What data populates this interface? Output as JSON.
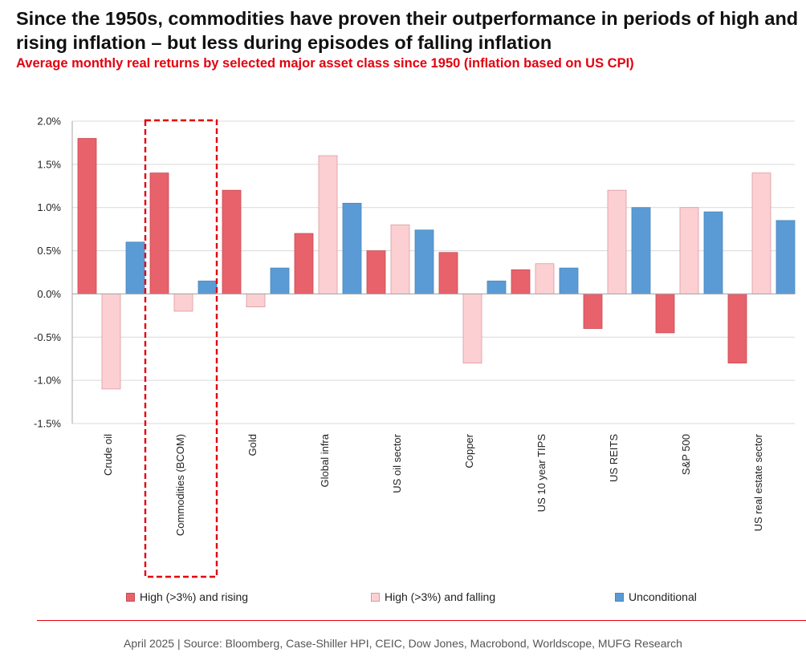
{
  "title": "Since the 1950s, commodities have proven their outperformance in periods of high and rising inflation – but less during episodes of falling inflation",
  "subtitle": "Average monthly real returns by selected major asset class since 1950 (inflation based on US CPI)",
  "footer": "April 2025 | Source: Bloomberg, Case-Shiller HPI, CEIC, Dow Jones, Macrobond, Worldscope, MUFG Research",
  "colors": {
    "accent": "#e3000f",
    "rising": "#e8626b",
    "falling": "#fcd0d2",
    "unconditional": "#5b9bd5"
  },
  "chart_data": {
    "type": "bar",
    "title": "Average monthly real returns by selected major asset class since 1950 (inflation based on US CPI)",
    "categories": [
      "Crude oil",
      "Commodities (BCOM)",
      "Gold",
      "Global infra",
      "US oil sector",
      "Copper",
      "US 10 year TIPS",
      "US REITS",
      "S&P 500",
      "US real estate sector"
    ],
    "series": [
      {
        "name": "High (>3%) and rising",
        "values": [
          1.8,
          1.4,
          1.2,
          0.7,
          0.5,
          0.48,
          0.28,
          -0.4,
          -0.45,
          -0.8
        ]
      },
      {
        "name": "High (>3%) and falling",
        "values": [
          -1.1,
          -0.2,
          -0.15,
          1.6,
          0.8,
          -0.8,
          0.35,
          1.2,
          1.0,
          1.4
        ]
      },
      {
        "name": "Unconditional",
        "values": [
          0.6,
          0.15,
          0.3,
          1.05,
          0.74,
          0.15,
          0.3,
          1.0,
          0.95,
          0.85
        ]
      }
    ],
    "ylim": [
      -1.5,
      2.0
    ],
    "yticks": [
      2.0,
      1.5,
      1.0,
      0.5,
      0.0,
      -0.5,
      -1.0,
      -1.5
    ],
    "ytick_labels": [
      "2.0%",
      "1.5%",
      "1.0%",
      "0.5%",
      "0.0%",
      "-0.5%",
      "-1.0%",
      "-1.5%"
    ],
    "xlabel": "",
    "ylabel": "",
    "grid": true,
    "legend": "bottom",
    "highlighted_category": "Commodities (BCOM)"
  }
}
